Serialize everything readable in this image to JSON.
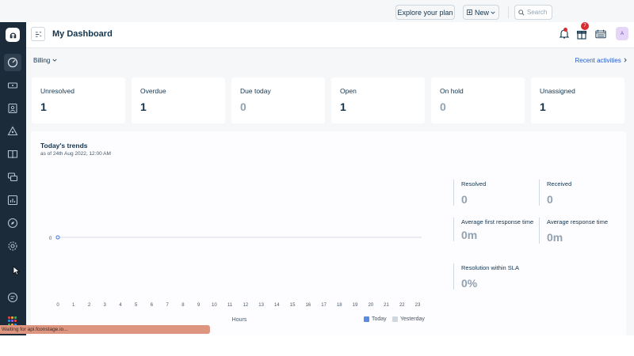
{
  "header": {
    "title": "My Dashboard",
    "plan_label": "Explore your plan",
    "new_label": "New",
    "search_placeholder": "Search",
    "notification_count": "7",
    "avatar_initial": "A"
  },
  "subbar": {
    "filter_label": "Billing",
    "recent_label": "Recent activities"
  },
  "cards": [
    {
      "label": "Unresolved",
      "value": "1"
    },
    {
      "label": "Overdue",
      "value": "1"
    },
    {
      "label": "Due today",
      "value": "0"
    },
    {
      "label": "Open",
      "value": "1"
    },
    {
      "label": "On hold",
      "value": "0"
    },
    {
      "label": "Unassigned",
      "value": "1"
    }
  ],
  "trends": {
    "title": "Today's trends",
    "subtitle": "as of 24th Aug 2022, 12:00 AM",
    "y_tick": "0",
    "x_label": "Hours",
    "x_ticks": [
      "0",
      "1",
      "2",
      "3",
      "4",
      "5",
      "6",
      "7",
      "8",
      "9",
      "10",
      "11",
      "12",
      "13",
      "14",
      "15",
      "16",
      "17",
      "18",
      "19",
      "20",
      "21",
      "22",
      "23"
    ],
    "legend": [
      {
        "name": "Today",
        "color": "#5a8de1"
      },
      {
        "name": "Yesterday",
        "color": "#cfd7df"
      }
    ],
    "stats": [
      {
        "label": "Resolved",
        "value": "0"
      },
      {
        "label": "Received",
        "value": "0"
      },
      {
        "label": "Average first response time",
        "value": "0m"
      },
      {
        "label": "Average response time",
        "value": "0m"
      },
      {
        "label": "Resolution within SLA",
        "value": "0%"
      }
    ]
  },
  "status_text": "Waiting for api.fconstage.io...",
  "colors": {
    "sidebar": "#1b2b3a",
    "accent_link": "#2c5cc5",
    "badge": "#d72d30"
  }
}
